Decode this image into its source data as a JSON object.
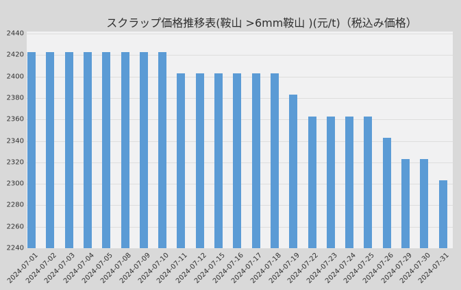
{
  "chart_data": {
    "type": "bar",
    "title": "スクラップ価格推移表(鞍山 >6mm鞍山 )(元/t)（税込み価格）",
    "categories": [
      "2024-07-01",
      "2024-07-02",
      "2024-07-03",
      "2024-07-04",
      "2024-07-05",
      "2024-07-08",
      "2024-07-09",
      "2024-07-10",
      "2024-07-11",
      "2024-07-12",
      "2024-07-15",
      "2024-07-16",
      "2024-07-17",
      "2024-07-18",
      "2024-07-19",
      "2024-07-22",
      "2024-07-23",
      "2024-07-24",
      "2024-07-25",
      "2024-07-26",
      "2024-07-29",
      "2024-07-30",
      "2024-07-31"
    ],
    "values": [
      2423,
      2423,
      2423,
      2423,
      2423,
      2423,
      2423,
      2423,
      2403,
      2403,
      2403,
      2403,
      2403,
      2403,
      2383,
      2363,
      2363,
      2363,
      2363,
      2343,
      2323,
      2323,
      2303
    ],
    "xlabel": "",
    "ylabel": "",
    "ylim": [
      2240,
      2440
    ],
    "ytick_step": 20,
    "grid": true,
    "legend_position": "none",
    "bar_color": "#5b9bd5",
    "figure_bg": "#d9d9d9",
    "plot_bg": "#f1f1f2",
    "gridline_color": "#dddddd",
    "text_color": "#303030"
  }
}
